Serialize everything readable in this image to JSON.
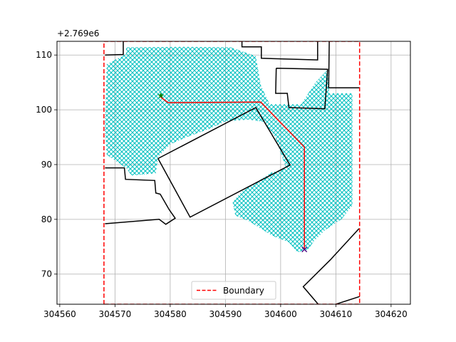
{
  "chart_data": {
    "type": "map-plot",
    "title": "",
    "xlabel": "",
    "ylabel": "",
    "y_offset_label": "+2.769e6",
    "xlim": [
      304559.5,
      304623.5
    ],
    "ylim": [
      64.5,
      112.5
    ],
    "xticks": [
      304560,
      304570,
      304580,
      304590,
      304600,
      304610,
      304620
    ],
    "yticks": [
      70,
      80,
      90,
      100,
      110
    ],
    "grid": true,
    "colors": {
      "grid": "#b0b0b0",
      "obstacles": "#000000",
      "boundary": "#ff0000",
      "path": "#ff0000",
      "coverage": "#00bfbf",
      "start": "#008000",
      "goal": "#4b0082"
    },
    "legend": {
      "position": "lower center",
      "entries": [
        {
          "label": "Boundary",
          "style": "dashed",
          "color": "#ff0000"
        }
      ]
    },
    "boundary": [
      [
        304568,
        64.5
      ],
      [
        304568,
        112.5
      ],
      [
        304614.3,
        112.5
      ],
      [
        304614.3,
        64.5
      ],
      [
        304568,
        64.5
      ]
    ],
    "obstacles": [
      [
        [
          304568.2,
          110.0
        ],
        [
          304571.5,
          110.1
        ],
        [
          304571.5,
          112.5
        ]
      ],
      [
        [
          304568.2,
          89.4
        ],
        [
          304571.7,
          89.4
        ],
        [
          304571.9,
          87.3
        ],
        [
          304577.2,
          87.1
        ],
        [
          304577.4,
          84.8
        ],
        [
          304578.2,
          84.6
        ],
        [
          304579.8,
          81.8
        ],
        [
          304580.9,
          80.2
        ],
        [
          304579.2,
          79.1
        ],
        [
          304578.0,
          80.0
        ],
        [
          304568.2,
          79.2
        ]
      ],
      [
        [
          304577.8,
          91.1
        ],
        [
          304595.5,
          100.4
        ],
        [
          304601.7,
          89.9
        ],
        [
          304583.6,
          80.4
        ],
        [
          304577.8,
          91.1
        ]
      ],
      [
        [
          304593.0,
          112.5
        ],
        [
          304593.0,
          111.5
        ],
        [
          304596.5,
          111.5
        ],
        [
          304596.5,
          109.4
        ],
        [
          304606.7,
          109.1
        ],
        [
          304606.7,
          112.5
        ]
      ],
      [
        [
          304599.2,
          107.6
        ],
        [
          304608.5,
          107.4
        ],
        [
          304608.0,
          100.2
        ],
        [
          304601.5,
          100.4
        ],
        [
          304601.2,
          103.0
        ],
        [
          304599.1,
          103.0
        ],
        [
          304599.2,
          107.6
        ]
      ],
      [
        [
          304608.8,
          112.5
        ],
        [
          304608.7,
          104.0
        ],
        [
          304614.3,
          104.0
        ]
      ],
      [
        [
          304614.2,
          78.3
        ],
        [
          304609.0,
          72.6
        ],
        [
          304604.1,
          67.7
        ],
        [
          304606.8,
          64.5
        ]
      ],
      [
        [
          304610.0,
          64.5
        ],
        [
          304614.3,
          65.9
        ]
      ]
    ],
    "coverage_area": [
      [
        304572,
        111.4
      ],
      [
        304583,
        111.5
      ],
      [
        304591,
        111.4
      ],
      [
        304595.5,
        109.8
      ],
      [
        304596.4,
        104.5
      ],
      [
        304598.0,
        101.0
      ],
      [
        304603.7,
        101.0
      ],
      [
        304606.3,
        105.0
      ],
      [
        304608.5,
        107.3
      ],
      [
        304608.8,
        103.0
      ],
      [
        304613.0,
        103.0
      ],
      [
        304613.0,
        82.5
      ],
      [
        304611.0,
        80.0
      ],
      [
        304608.0,
        78.0
      ],
      [
        304606.0,
        76.0
      ],
      [
        304605.0,
        74.5
      ],
      [
        304603.0,
        74.0
      ],
      [
        304601.5,
        75.8
      ],
      [
        304598.5,
        77.0
      ],
      [
        304594.2,
        79.7
      ],
      [
        304591.8,
        80.7
      ],
      [
        304591.3,
        83.2
      ],
      [
        304593.0,
        85.1
      ],
      [
        304596.0,
        87.0
      ],
      [
        304598.2,
        88.5
      ],
      [
        304601.0,
        89.3
      ],
      [
        304599.0,
        95.0
      ],
      [
        304597.0,
        97.8
      ],
      [
        304594.2,
        98.2
      ],
      [
        304590.0,
        97.9
      ],
      [
        304587.0,
        96.5
      ],
      [
        304583.0,
        95.0
      ],
      [
        304580.0,
        93.7
      ],
      [
        304577.8,
        91.4
      ],
      [
        304577.4,
        88.4
      ],
      [
        304573.0,
        88.0
      ],
      [
        304572.1,
        89.3
      ],
      [
        304568.5,
        91.8
      ],
      [
        304568.2,
        96.5
      ],
      [
        304568.5,
        108.3
      ],
      [
        304572.0,
        110.2
      ]
    ],
    "path": [
      [
        304578.3,
        102.3
      ],
      [
        304579.6,
        101.3
      ],
      [
        304596.4,
        101.4
      ],
      [
        304604.3,
        93.2
      ],
      [
        304604.3,
        74.5
      ]
    ],
    "start": [
      304578.3,
      102.6
    ],
    "goal": [
      304604.3,
      74.5
    ]
  }
}
